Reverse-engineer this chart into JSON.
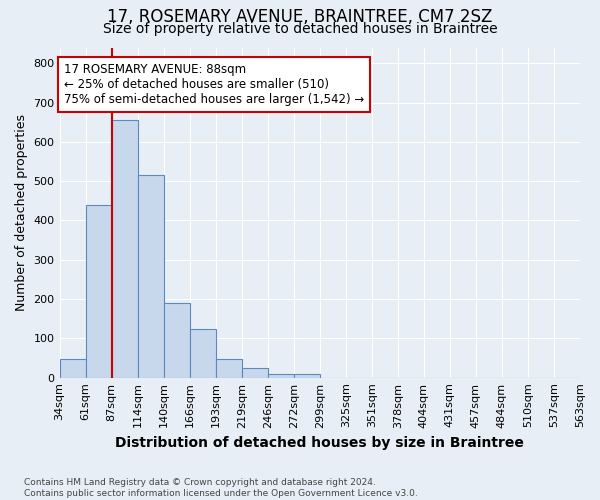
{
  "title": "17, ROSEMARY AVENUE, BRAINTREE, CM7 2SZ",
  "subtitle": "Size of property relative to detached houses in Braintree",
  "xlabel": "Distribution of detached houses by size in Braintree",
  "ylabel": "Number of detached properties",
  "bins": [
    "34sqm",
    "61sqm",
    "87sqm",
    "114sqm",
    "140sqm",
    "166sqm",
    "193sqm",
    "219sqm",
    "246sqm",
    "272sqm",
    "299sqm",
    "325sqm",
    "351sqm",
    "378sqm",
    "404sqm",
    "431sqm",
    "457sqm",
    "484sqm",
    "510sqm",
    "537sqm",
    "563sqm"
  ],
  "bar_values": [
    47,
    440,
    655,
    515,
    190,
    125,
    47,
    25,
    10,
    10,
    0,
    0,
    0,
    0,
    0,
    0,
    0,
    0,
    0,
    0
  ],
  "bar_color": "#c8d8ec",
  "bar_edge_color": "#5b8abf",
  "marker_line_color": "#cc0000",
  "annotation_text": "17 ROSEMARY AVENUE: 88sqm\n← 25% of detached houses are smaller (510)\n75% of semi-detached houses are larger (1,542) →",
  "annotation_box_facecolor": "#ffffff",
  "annotation_box_edgecolor": "#cc0000",
  "ylim": [
    0,
    840
  ],
  "yticks": [
    0,
    100,
    200,
    300,
    400,
    500,
    600,
    700,
    800
  ],
  "footer": "Contains HM Land Registry data © Crown copyright and database right 2024.\nContains public sector information licensed under the Open Government Licence v3.0.",
  "bg_color": "#e8eef5",
  "grid_color": "#ffffff",
  "title_fontsize": 12,
  "subtitle_fontsize": 10,
  "xlabel_fontsize": 10,
  "ylabel_fontsize": 9,
  "tick_fontsize": 8,
  "footer_fontsize": 6.5,
  "annotation_fontsize": 8.5
}
